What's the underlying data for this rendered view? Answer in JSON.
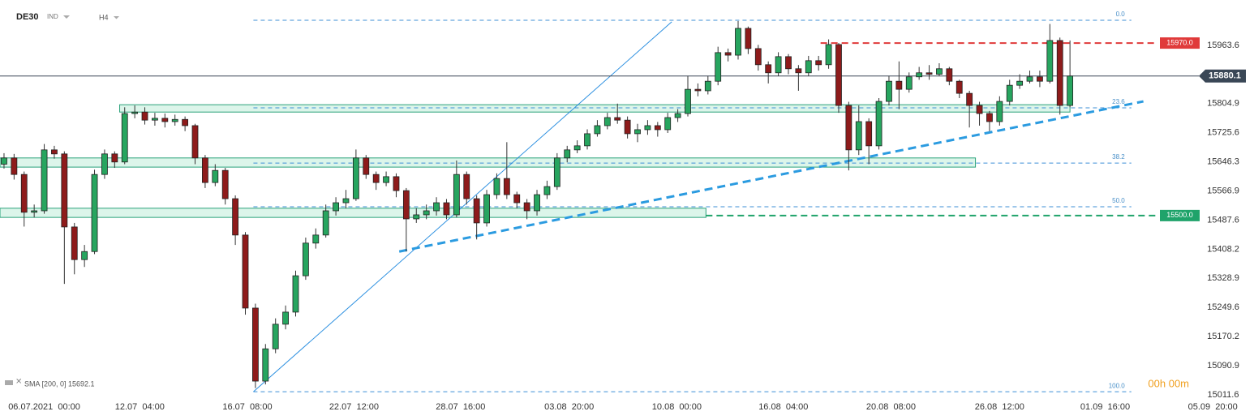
{
  "chart_data": {
    "type": "candlestick",
    "symbol": "DE30",
    "market": "IND",
    "interval": "H4",
    "indicator": "SMA [200, 0] 15692.1",
    "timer": "00h 00m",
    "up_color": "#27a55f",
    "down_color": "#8e1b1b",
    "open": [
      15640,
      15657,
      15612,
      15509,
      15513,
      15679,
      15668,
      15469,
      15380,
      15402,
      15612,
      15668,
      15646,
      15778,
      15782,
      15760,
      15765,
      15756,
      15762,
      15745,
      15657,
      15590,
      15623,
      15546,
      15447,
      15248,
      15049,
      15137,
      15204,
      15237,
      15336,
      15425,
      15447,
      15513,
      15535,
      15546,
      15657,
      15612,
      15590,
      15606,
      15568,
      15491,
      15502,
      15513,
      15535,
      15502,
      15612,
      15546,
      15480,
      15557,
      15601,
      15557,
      15535,
      15513,
      15557,
      15579,
      15657,
      15679,
      15690,
      15723,
      15745,
      15767,
      15760,
      15723,
      15734,
      15745,
      15734,
      15767,
      15778,
      15844,
      15840,
      15866,
      15944,
      15937,
      16010,
      15955,
      15911,
      15889,
      15933,
      15900,
      15889,
      15922,
      15911,
      15966,
      15800,
      15679,
      15756,
      15690,
      15811,
      15866,
      15844,
      15878,
      15889,
      15885,
      15900,
      15866,
      15833,
      15800,
      15778,
      15756,
      15811,
      15855,
      15866,
      15878,
      15866,
      15977,
      15800
    ],
    "high": [
      15670,
      15668,
      15620,
      15530,
      15695,
      15690,
      15675,
      15480,
      15420,
      15625,
      15680,
      15675,
      15795,
      15800,
      15795,
      15780,
      15778,
      15775,
      15770,
      15750,
      15665,
      15640,
      15630,
      15555,
      15455,
      15260,
      15150,
      15220,
      15255,
      15350,
      15440,
      15465,
      15530,
      15550,
      15570,
      15680,
      15665,
      15620,
      15620,
      15615,
      15575,
      15520,
      15530,
      15550,
      15545,
      15650,
      15620,
      15555,
      15570,
      15615,
      15700,
      15565,
      15545,
      15570,
      15595,
      15670,
      15690,
      15705,
      15735,
      15760,
      15780,
      15805,
      15770,
      15750,
      15760,
      15755,
      15780,
      15790,
      15880,
      15860,
      15880,
      15960,
      15955,
      16030,
      16015,
      15965,
      15920,
      15945,
      15940,
      15910,
      15935,
      15935,
      15980,
      15970,
      15810,
      15800,
      15765,
      15820,
      15880,
      15920,
      15890,
      15905,
      15910,
      15915,
      15905,
      15870,
      15840,
      15810,
      15785,
      15825,
      15870,
      15885,
      15895,
      15895,
      16022,
      15985,
      15977
    ],
    "low": [
      15628,
      15598,
      15470,
      15495,
      15505,
      15655,
      15314,
      15340,
      15360,
      15395,
      15600,
      15630,
      15640,
      15765,
      15748,
      15745,
      15740,
      15745,
      15730,
      15640,
      15575,
      15580,
      15530,
      15420,
      15230,
      15030,
      15040,
      15125,
      15190,
      15225,
      15325,
      15410,
      15440,
      15500,
      15520,
      15540,
      15600,
      15570,
      15580,
      15550,
      15402,
      15480,
      15490,
      15500,
      15490,
      15495,
      15530,
      15435,
      15470,
      15545,
      15545,
      15520,
      15490,
      15500,
      15545,
      15570,
      15645,
      15670,
      15680,
      15715,
      15735,
      15750,
      15710,
      15700,
      15720,
      15715,
      15725,
      15755,
      15770,
      15825,
      15830,
      15855,
      15920,
      15925,
      15940,
      15895,
      15860,
      15880,
      15885,
      15840,
      15880,
      15895,
      15900,
      15780,
      15623,
      15665,
      15640,
      15680,
      15800,
      15790,
      15835,
      15870,
      15870,
      15880,
      15855,
      15820,
      15740,
      15745,
      15730,
      15745,
      15800,
      15845,
      15860,
      15850,
      15860,
      15775,
      15795
    ],
    "close": [
      15657,
      15612,
      15509,
      15513,
      15679,
      15668,
      15469,
      15380,
      15402,
      15612,
      15668,
      15646,
      15778,
      15782,
      15760,
      15765,
      15756,
      15762,
      15745,
      15657,
      15590,
      15623,
      15546,
      15447,
      15248,
      15049,
      15137,
      15204,
      15237,
      15336,
      15425,
      15447,
      15513,
      15535,
      15546,
      15657,
      15612,
      15590,
      15606,
      15568,
      15491,
      15502,
      15513,
      15535,
      15502,
      15612,
      15546,
      15480,
      15557,
      15601,
      15557,
      15535,
      15513,
      15557,
      15579,
      15657,
      15679,
      15690,
      15723,
      15745,
      15767,
      15760,
      15723,
      15734,
      15745,
      15734,
      15767,
      15778,
      15844,
      15840,
      15866,
      15944,
      15937,
      16010,
      15955,
      15911,
      15889,
      15933,
      15900,
      15889,
      15922,
      15911,
      15966,
      15800,
      15679,
      15756,
      15690,
      15811,
      15866,
      15844,
      15878,
      15889,
      15885,
      15900,
      15866,
      15833,
      15800,
      15778,
      15756,
      15811,
      15855,
      15866,
      15878,
      15866,
      15977,
      15800,
      15880.1
    ],
    "last_price": 15880.1,
    "xlim": [
      -0.4,
      124.3
    ],
    "ylim": [
      15004.9,
      16087.3
    ],
    "xticks": [
      {
        "value": 4,
        "label": "06.07.2021  00:00"
      },
      {
        "value": 13.5,
        "label": "12.07  04:00"
      },
      {
        "value": 24.2,
        "label": "16.07  08:00"
      },
      {
        "value": 34.8,
        "label": "22.07  12:00"
      },
      {
        "value": 45.4,
        "label": "28.07  16:00"
      },
      {
        "value": 56.2,
        "label": "03.08  20:00"
      },
      {
        "value": 66.9,
        "label": "10.08  00:00"
      },
      {
        "value": 77.5,
        "label": "16.08  04:00"
      },
      {
        "value": 88.2,
        "label": "20.08  08:00"
      },
      {
        "value": 99,
        "label": "26.08  12:00"
      },
      {
        "value": 109.5,
        "label": "01.09  16:00"
      },
      {
        "value": 120.2,
        "label": "05.09  20:00"
      }
    ],
    "yticks": [
      15963.6,
      15804.9,
      15725.6,
      15646.3,
      15566.9,
      15487.6,
      15408.2,
      15328.9,
      15249.6,
      15170.2,
      15090.9,
      15011.6
    ],
    "levels": [
      {
        "value": 15970,
        "label": "15970.0",
        "color": "#e03a3a",
        "start": 81.2,
        "end": 114.5
      },
      {
        "value": 15500,
        "label": "15500.0",
        "color": "#1fa36a",
        "start": 69.8,
        "end": 114.5
      }
    ],
    "fib": {
      "start": 24.8,
      "end": 112.1,
      "levels": [
        {
          "label": "0.0",
          "value": 16032
        },
        {
          "label": "23.6",
          "value": 15793.5
        },
        {
          "label": "38.2",
          "value": 15643
        },
        {
          "label": "50.0",
          "value": 15524
        },
        {
          "label": "100.0",
          "value": 15020
        }
      ]
    },
    "zones": [
      {
        "start": 11.5,
        "end": 106.0,
        "top": 15802,
        "bottom": 15782
      },
      {
        "start": -0.4,
        "end": 96.6,
        "top": 15657,
        "bottom": 15632
      },
      {
        "start": -0.4,
        "end": 69.8,
        "top": 15520,
        "bottom": 15495
      }
    ],
    "trendlines": [
      {
        "x": [
          24.8,
          66.4
        ],
        "y": [
          15020,
          16028
        ],
        "dashed": false
      },
      {
        "x": [
          39.3,
          113.3
        ],
        "y": [
          15402,
          15811
        ],
        "dashed": true
      }
    ]
  }
}
